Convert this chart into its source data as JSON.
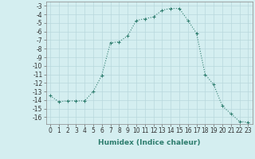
{
  "xlabel": "Humidex (Indice chaleur)",
  "x": [
    0,
    1,
    2,
    3,
    4,
    5,
    6,
    7,
    8,
    9,
    10,
    11,
    12,
    13,
    14,
    15,
    16,
    17,
    18,
    19,
    20,
    21,
    22,
    23
  ],
  "y": [
    -13.5,
    -14.2,
    -14.1,
    -14.1,
    -14.1,
    -13.0,
    -11.1,
    -7.3,
    -7.2,
    -6.5,
    -4.7,
    -4.5,
    -4.3,
    -3.5,
    -3.3,
    -3.3,
    -4.7,
    -6.2,
    -11.0,
    -12.2,
    -14.7,
    -15.6,
    -16.5,
    -16.6
  ],
  "line_color": "#2e7d6e",
  "marker": "+",
  "markersize": 3,
  "linewidth": 0.8,
  "ylim": [
    -16.8,
    -2.5
  ],
  "xlim": [
    -0.5,
    23.5
  ],
  "yticks": [
    -3,
    -4,
    -5,
    -6,
    -7,
    -8,
    -9,
    -10,
    -11,
    -12,
    -13,
    -14,
    -15,
    -16
  ],
  "xticks": [
    0,
    1,
    2,
    3,
    4,
    5,
    6,
    7,
    8,
    9,
    10,
    11,
    12,
    13,
    14,
    15,
    16,
    17,
    18,
    19,
    20,
    21,
    22,
    23
  ],
  "xtick_labels": [
    "0",
    "1",
    "2",
    "3",
    "4",
    "5",
    "6",
    "7",
    "8",
    "9",
    "10",
    "11",
    "12",
    "13",
    "14",
    "15",
    "16",
    "17",
    "18",
    "19",
    "20",
    "21",
    "22",
    "23"
  ],
  "bg_color": "#d4eef0",
  "grid_color": "#b8d8dc",
  "tick_fontsize": 5.5,
  "label_fontsize": 6.5
}
